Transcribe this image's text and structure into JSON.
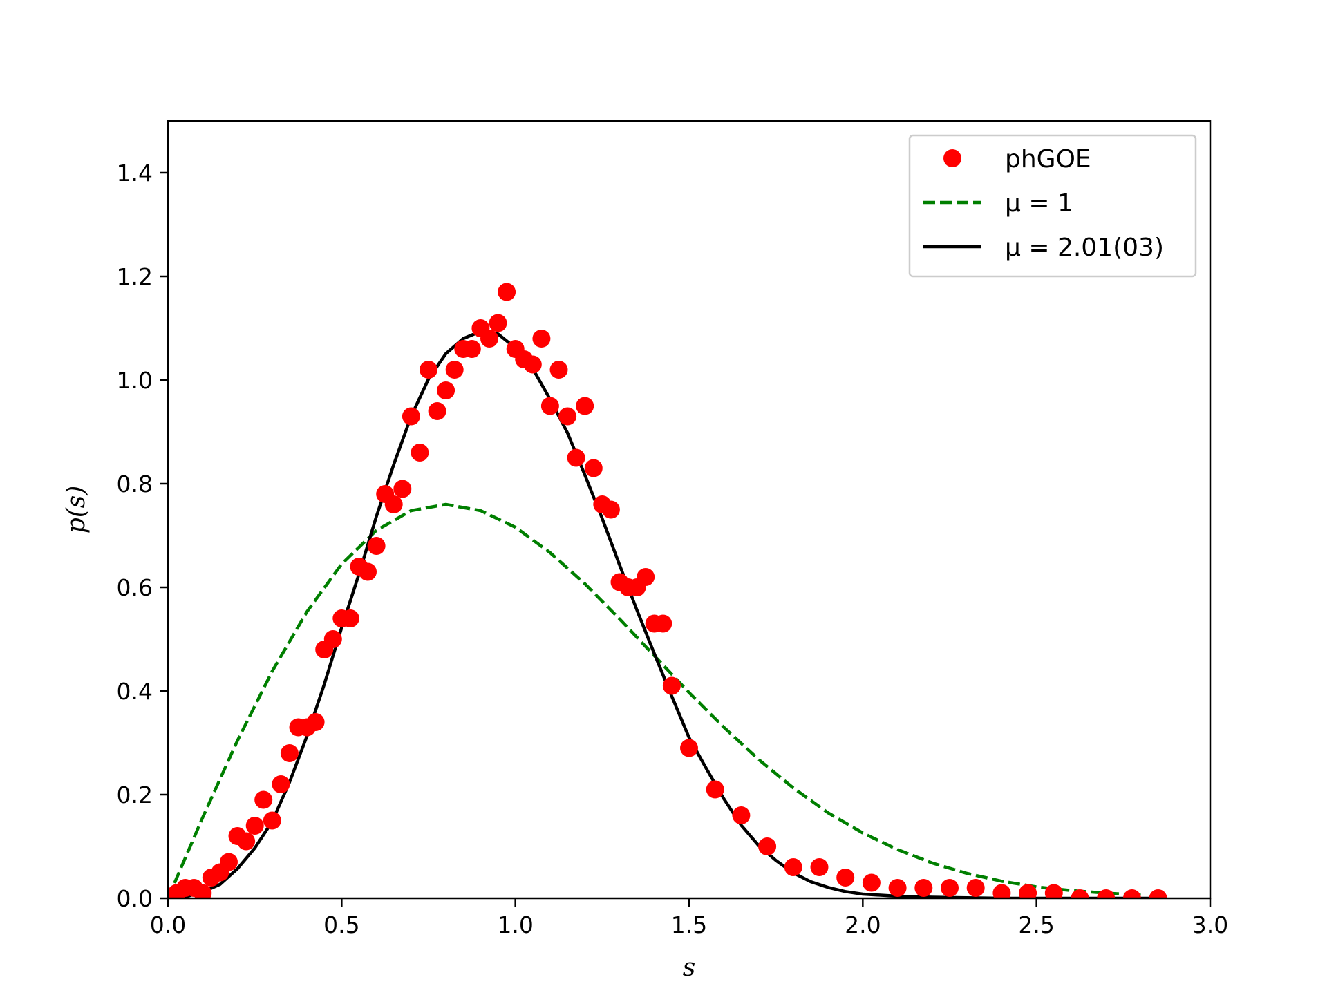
{
  "chart_data": {
    "type": "scatter",
    "xlabel": "s",
    "ylabel": "p(s)",
    "xlim": [
      0.0,
      3.0
    ],
    "ylim": [
      0.0,
      1.5
    ],
    "xticks": [
      "0.0",
      "0.5",
      "1.0",
      "1.5",
      "2.0",
      "2.5",
      "3.0"
    ],
    "yticks": [
      "0.0",
      "0.2",
      "0.4",
      "0.6",
      "0.8",
      "1.0",
      "1.2",
      "1.4"
    ],
    "grid": false,
    "legend_position": "top-right",
    "series": [
      {
        "name": "phGOE",
        "kind": "points",
        "color": "#ff0000",
        "x": [
          0.0,
          0.025,
          0.05,
          0.075,
          0.1,
          0.125,
          0.15,
          0.175,
          0.2,
          0.225,
          0.25,
          0.275,
          0.3,
          0.325,
          0.35,
          0.375,
          0.4,
          0.425,
          0.45,
          0.475,
          0.5,
          0.525,
          0.55,
          0.575,
          0.6,
          0.625,
          0.65,
          0.675,
          0.7,
          0.725,
          0.75,
          0.775,
          0.8,
          0.825,
          0.85,
          0.875,
          0.9,
          0.925,
          0.95,
          0.975,
          1.0,
          1.025,
          1.05,
          1.075,
          1.1,
          1.125,
          1.15,
          1.175,
          1.2,
          1.225,
          1.25,
          1.275,
          1.3,
          1.325,
          1.35,
          1.375,
          1.4,
          1.425,
          1.45,
          1.5,
          1.575,
          1.65,
          1.725,
          1.8,
          1.875,
          1.95,
          2.025,
          2.1,
          2.175,
          2.25,
          2.325,
          2.4,
          2.475,
          2.55,
          2.625,
          2.7,
          2.775,
          2.85
        ],
        "y": [
          0.0,
          0.01,
          0.02,
          0.02,
          0.01,
          0.04,
          0.05,
          0.07,
          0.12,
          0.11,
          0.14,
          0.19,
          0.15,
          0.22,
          0.28,
          0.33,
          0.33,
          0.34,
          0.48,
          0.5,
          0.54,
          0.54,
          0.64,
          0.63,
          0.68,
          0.78,
          0.76,
          0.79,
          0.93,
          0.86,
          1.02,
          0.94,
          0.98,
          1.02,
          1.06,
          1.06,
          1.1,
          1.08,
          1.11,
          1.17,
          1.06,
          1.04,
          1.03,
          1.08,
          0.95,
          1.02,
          0.93,
          0.85,
          0.95,
          0.83,
          0.76,
          0.75,
          0.61,
          0.6,
          0.6,
          0.62,
          0.53,
          0.53,
          0.41,
          0.29,
          0.21,
          0.16,
          0.1,
          0.06,
          0.06,
          0.04,
          0.03,
          0.02,
          0.02,
          0.02,
          0.02,
          0.01,
          0.01,
          0.01,
          0.0,
          0.0,
          0.0,
          0.0
        ]
      },
      {
        "name": "μ = 1",
        "kind": "line",
        "dash": "dashed",
        "color": "#007f00",
        "x": [
          0.0,
          0.1,
          0.2,
          0.3,
          0.4,
          0.5,
          0.6,
          0.7,
          0.8,
          0.9,
          1.0,
          1.1,
          1.2,
          1.3,
          1.4,
          1.5,
          1.6,
          1.7,
          1.8,
          1.9,
          2.0,
          2.1,
          2.2,
          2.3,
          2.4,
          2.5,
          2.6,
          2.7,
          2.8
        ],
        "y": [
          0.0,
          0.156,
          0.304,
          0.438,
          0.553,
          0.645,
          0.71,
          0.748,
          0.76,
          0.748,
          0.716,
          0.667,
          0.607,
          0.539,
          0.468,
          0.397,
          0.33,
          0.268,
          0.213,
          0.165,
          0.126,
          0.094,
          0.068,
          0.048,
          0.033,
          0.022,
          0.015,
          0.01,
          0.006
        ]
      },
      {
        "name": "μ = 2.01(03)",
        "kind": "line",
        "dash": "solid",
        "color": "#000000",
        "x": [
          0.0,
          0.05,
          0.1,
          0.15,
          0.2,
          0.25,
          0.3,
          0.35,
          0.4,
          0.45,
          0.5,
          0.55,
          0.6,
          0.65,
          0.7,
          0.75,
          0.8,
          0.85,
          0.9,
          0.95,
          1.0,
          1.05,
          1.1,
          1.15,
          1.2,
          1.25,
          1.3,
          1.35,
          1.4,
          1.45,
          1.5,
          1.55,
          1.6,
          1.65,
          1.7,
          1.75,
          1.8,
          1.85,
          1.9,
          1.95,
          2.0,
          2.1,
          2.2,
          2.3,
          2.4,
          2.5,
          2.6,
          2.7,
          2.8,
          2.85
        ],
        "y": [
          0.0,
          0.003,
          0.012,
          0.027,
          0.057,
          0.097,
          0.148,
          0.224,
          0.313,
          0.413,
          0.522,
          0.626,
          0.737,
          0.837,
          0.93,
          1.002,
          1.051,
          1.08,
          1.094,
          1.089,
          1.062,
          1.022,
          0.963,
          0.898,
          0.817,
          0.733,
          0.643,
          0.556,
          0.472,
          0.39,
          0.31,
          0.25,
          0.192,
          0.141,
          0.102,
          0.073,
          0.049,
          0.032,
          0.021,
          0.013,
          0.008,
          0.004,
          0.002,
          0.001,
          0.0,
          0.0,
          0.0,
          0.0,
          0.0,
          0.0
        ]
      }
    ]
  }
}
